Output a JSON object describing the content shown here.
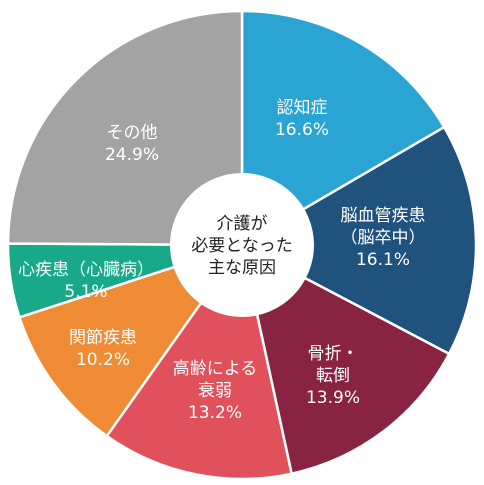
{
  "chart_data": {
    "type": "pie",
    "center_label": [
      "介護が",
      "必要となった",
      "主な原因"
    ],
    "slices": [
      {
        "label": [
          "認知症"
        ],
        "value": 16.6,
        "value_label": "16.6%",
        "color": "#2aa4d3"
      },
      {
        "label": [
          "脳血管疾患",
          "（脳卒中）"
        ],
        "value": 16.1,
        "value_label": "16.1%",
        "color": "#1f527c"
      },
      {
        "label": [
          "骨折・",
          "転倒"
        ],
        "value": 13.9,
        "value_label": "13.9%",
        "color": "#882342"
      },
      {
        "label": [
          "高齢による",
          "衰弱"
        ],
        "value": 13.2,
        "value_label": "13.2%",
        "color": "#e0515c"
      },
      {
        "label": [
          "関節疾患"
        ],
        "value": 10.2,
        "value_label": "10.2%",
        "color": "#ee8b34"
      },
      {
        "label": [
          "心疾患（心臓病）"
        ],
        "value": 5.1,
        "value_label": "5.1%",
        "color": "#18a989"
      },
      {
        "label": [
          "その他"
        ],
        "value": 24.9,
        "value_label": "24.9%",
        "color": "#a3a3a3"
      }
    ]
  }
}
